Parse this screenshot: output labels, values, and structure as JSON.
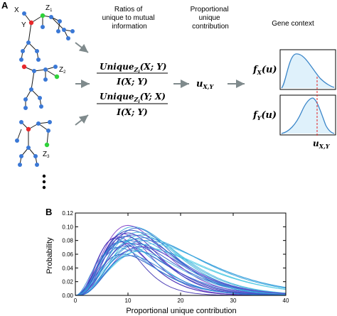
{
  "panel_a": {
    "label": "A",
    "headers": {
      "ratios": [
        "Ratios of",
        "unique to mutual",
        "information"
      ],
      "proportional": [
        "Proportional",
        "unique",
        "contribution"
      ],
      "gene_context": "Gene context"
    },
    "tree_labels": {
      "x": "X",
      "y": "Y",
      "z1": "Z",
      "z1_sub": "1",
      "z2": "Z",
      "z2_sub": "2",
      "z3": "Z",
      "z3_sub": "3"
    },
    "formulas": {
      "num1": "Unique",
      "num1_sub": "Z",
      "num1_subsub": "i",
      "num1_args": "(X; Y)",
      "den": "I(X; Y)",
      "num2": "Unique",
      "num2_sub": "Z",
      "num2_subsub": "i",
      "num2_args": "(Y; X)",
      "u_xy": "u",
      "u_xy_sub": "X,Y"
    },
    "context_labels": {
      "fx": "f",
      "fx_sub": "X",
      "fx_arg": "(u)",
      "fy": "f",
      "fy_sub": "Y",
      "fy_arg": "(u)",
      "u_bottom": "u",
      "u_bottom_sub": "X,Y"
    },
    "colors": {
      "node_blue": "#3a78d6",
      "node_red": "#e8282b",
      "node_green": "#2fd33a",
      "curve": "#3b86c9",
      "fill": "#dff1fb",
      "dashed": "#e02020",
      "arrow": "#7f8a8c"
    }
  },
  "panel_b": {
    "label": "B",
    "chart_data": {
      "type": "line",
      "xlabel": "Proportional unique contribution",
      "ylabel": "Probability",
      "xlim": [
        0,
        40
      ],
      "ylim": [
        0,
        0.12
      ],
      "x_ticks": [
        "0",
        "10",
        "20",
        "30",
        "40"
      ],
      "y_ticks": [
        "0.00",
        "0.02",
        "0.04",
        "0.06",
        "0.08",
        "0.10",
        "0.12"
      ],
      "series": [
        {
          "peak_x": 10,
          "peak_y": 0.08,
          "color": "#2a55c8"
        },
        {
          "peak_x": 11,
          "peak_y": 0.1,
          "color": "#3aa9d8"
        },
        {
          "peak_x": 8,
          "peak_y": 0.085,
          "color": "#5b3ac9"
        },
        {
          "peak_x": 12,
          "peak_y": 0.075,
          "color": "#2f8fd6"
        },
        {
          "peak_x": 9,
          "peak_y": 0.09,
          "color": "#6a32c0"
        },
        {
          "peak_x": 13,
          "peak_y": 0.07,
          "color": "#42c3e0"
        },
        {
          "peak_x": 10.5,
          "peak_y": 0.095,
          "color": "#2740b8"
        },
        {
          "peak_x": 11.5,
          "peak_y": 0.082,
          "color": "#3b9bdc"
        },
        {
          "peak_x": 8.5,
          "peak_y": 0.078,
          "color": "#4a2fb5"
        },
        {
          "peak_x": 12.5,
          "peak_y": 0.088,
          "color": "#2fb8d9"
        },
        {
          "peak_x": 9.5,
          "peak_y": 0.072,
          "color": "#3a63d0"
        },
        {
          "peak_x": 14,
          "peak_y": 0.068,
          "color": "#55cde6"
        },
        {
          "peak_x": 10,
          "peak_y": 0.102,
          "color": "#7a3ac8"
        },
        {
          "peak_x": 11,
          "peak_y": 0.066,
          "color": "#2d7fd2"
        },
        {
          "peak_x": 7.5,
          "peak_y": 0.083,
          "color": "#3f30b0"
        },
        {
          "peak_x": 13,
          "peak_y": 0.084,
          "color": "#33a1dc"
        },
        {
          "peak_x": 9,
          "peak_y": 0.06,
          "color": "#2a5bc6"
        },
        {
          "peak_x": 12,
          "peak_y": 0.092,
          "color": "#48bde0"
        },
        {
          "peak_x": 10.5,
          "peak_y": 0.076,
          "color": "#5e36c2"
        },
        {
          "peak_x": 11.5,
          "peak_y": 0.098,
          "color": "#2b6ed0"
        },
        {
          "peak_x": 8,
          "peak_y": 0.07,
          "color": "#3c8fd8"
        },
        {
          "peak_x": 14.5,
          "peak_y": 0.075,
          "color": "#5fd2ea"
        },
        {
          "peak_x": 9.5,
          "peak_y": 0.086,
          "color": "#2e48bd"
        },
        {
          "peak_x": 12,
          "peak_y": 0.064,
          "color": "#3fb0dd"
        },
        {
          "peak_x": 10,
          "peak_y": 0.091,
          "color": "#4b39c3"
        },
        {
          "peak_x": 13.5,
          "peak_y": 0.08,
          "color": "#2f92d8"
        },
        {
          "peak_x": 11,
          "peak_y": 0.088,
          "color": "#3a58cc"
        },
        {
          "peak_x": 9,
          "peak_y": 0.079,
          "color": "#2fa6dc"
        },
        {
          "peak_x": 12.5,
          "peak_y": 0.071,
          "color": "#6a3fcb"
        },
        {
          "peak_x": 10.5,
          "peak_y": 0.058,
          "color": "#2c7cd4"
        }
      ]
    }
  }
}
